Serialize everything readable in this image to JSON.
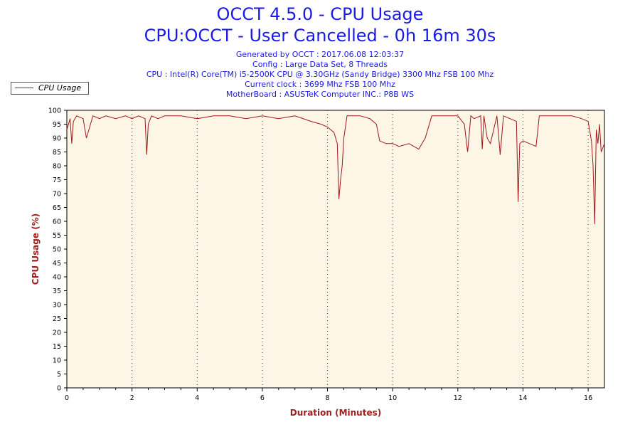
{
  "header": {
    "title": "OCCT 4.5.0 - CPU Usage",
    "subtitle": "CPU:OCCT - User Cancelled - 0h 16m 30s",
    "info_lines": [
      "Generated by OCCT : 2017.06.08 12:03:37",
      "Config : Large Data Set, 8 Threads",
      "CPU : Intel(R) Core(TM) i5-2500K CPU @ 3.30GHz (Sandy Bridge) 3300 Mhz FSB 100 Mhz",
      "Current clock : 3699 Mhz FSB 100 Mhz",
      "MotherBoard : ASUSTeK Computer INC.: P8B WS"
    ]
  },
  "colors": {
    "title": "#1a1ae6",
    "series": "#a01818",
    "plot_bg": "#fdf5e6",
    "axis_label": "#a02020"
  },
  "chart_data": {
    "type": "line",
    "xlabel": "Duration (Minutes)",
    "ylabel": "CPU Usage (%)",
    "xlim": [
      0,
      16.5
    ],
    "ylim": [
      0,
      100
    ],
    "xticks": [
      0,
      2,
      4,
      6,
      8,
      10,
      12,
      14,
      16
    ],
    "yticks": [
      0,
      5,
      10,
      15,
      20,
      25,
      30,
      35,
      40,
      45,
      50,
      55,
      60,
      65,
      70,
      75,
      80,
      85,
      90,
      95,
      100
    ],
    "grid_x": true,
    "grid_y": false,
    "legend": "top-left",
    "series": [
      {
        "name": "CPU Usage",
        "x": [
          0,
          0.1,
          0.15,
          0.2,
          0.3,
          0.5,
          0.6,
          0.8,
          1.0,
          1.2,
          1.5,
          1.8,
          2.0,
          2.2,
          2.4,
          2.45,
          2.5,
          2.6,
          2.8,
          3.0,
          3.5,
          4.0,
          4.5,
          5.0,
          5.5,
          6.0,
          6.5,
          7.0,
          7.5,
          7.8,
          8.0,
          8.2,
          8.3,
          8.35,
          8.4,
          8.45,
          8.5,
          8.6,
          8.8,
          9.0,
          9.3,
          9.5,
          9.6,
          9.8,
          10.0,
          10.2,
          10.5,
          10.8,
          11.0,
          11.2,
          11.5,
          11.8,
          12.0,
          12.2,
          12.3,
          12.4,
          12.5,
          12.7,
          12.75,
          12.8,
          12.9,
          13.0,
          13.2,
          13.3,
          13.4,
          13.6,
          13.8,
          13.85,
          13.9,
          14.0,
          14.2,
          14.4,
          14.5,
          14.6,
          15.0,
          15.5,
          15.8,
          16.0,
          16.1,
          16.15,
          16.2,
          16.25,
          16.3,
          16.35,
          16.4,
          16.5
        ],
        "values": [
          93,
          97,
          88,
          96,
          98,
          97,
          90,
          98,
          97,
          98,
          97,
          98,
          97,
          98,
          97,
          84,
          95,
          98,
          97,
          98,
          98,
          97,
          98,
          98,
          97,
          98,
          97,
          98,
          96,
          95,
          94,
          92,
          88,
          68,
          75,
          80,
          90,
          98,
          98,
          98,
          97,
          95,
          89,
          88,
          88,
          87,
          88,
          86,
          90,
          98,
          98,
          98,
          98,
          95,
          85,
          98,
          97,
          98,
          86,
          98,
          90,
          88,
          98,
          84,
          98,
          97,
          96,
          67,
          88,
          89,
          88,
          87,
          98,
          98,
          98,
          98,
          97,
          96,
          89,
          80,
          59,
          93,
          88,
          95,
          85,
          88
        ]
      }
    ]
  }
}
